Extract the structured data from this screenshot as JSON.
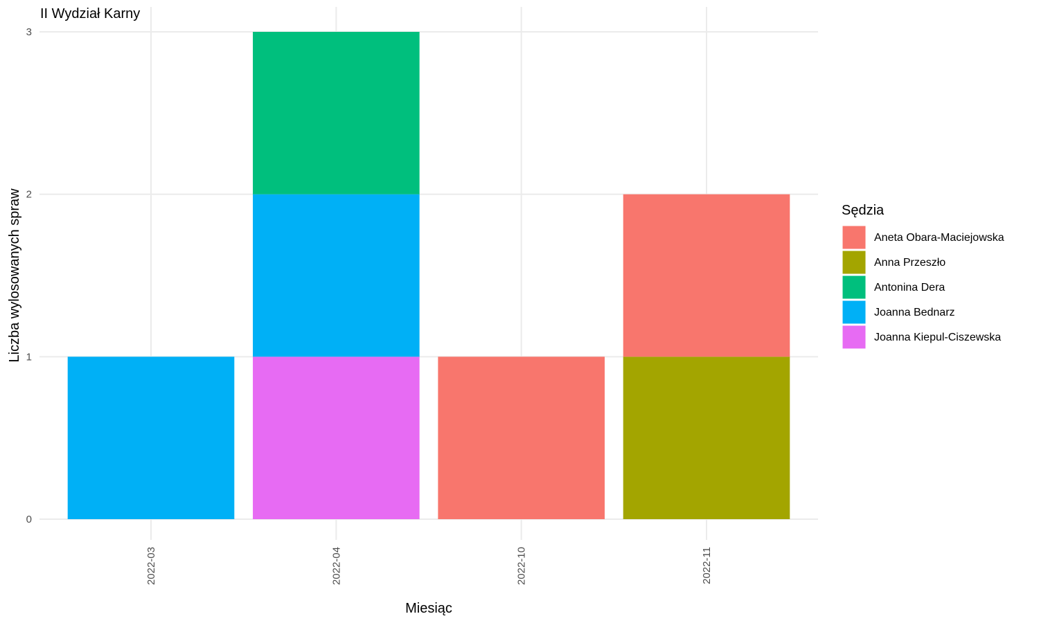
{
  "chart_data": {
    "type": "bar",
    "stacked": true,
    "title": "II Wydział Karny",
    "xlabel": "Miesiąc",
    "ylabel": "Liczba wylosowanych spraw",
    "categories": [
      "2022-03",
      "2022-04",
      "2022-10",
      "2022-11"
    ],
    "ylim": [
      0,
      3
    ],
    "yticks": [
      "0",
      "1",
      "2",
      "3"
    ],
    "grid": true,
    "legend": {
      "title": "Sędzia",
      "placement": "right"
    },
    "series": [
      {
        "name": "Aneta Obara-Maciejowska",
        "color": "#F8766D",
        "values": [
          0,
          0,
          1,
          1
        ]
      },
      {
        "name": "Anna Przeszło",
        "color": "#A3A500",
        "values": [
          0,
          0,
          0,
          1
        ]
      },
      {
        "name": "Antonina Dera",
        "color": "#00BF7D",
        "values": [
          0,
          1,
          0,
          0
        ]
      },
      {
        "name": "Joanna Bednarz",
        "color": "#00B0F6",
        "values": [
          1,
          1,
          0,
          0
        ]
      },
      {
        "name": "Joanna Kiepul-Ciszewska",
        "color": "#E76BF3",
        "values": [
          0,
          1,
          0,
          0
        ]
      }
    ]
  }
}
